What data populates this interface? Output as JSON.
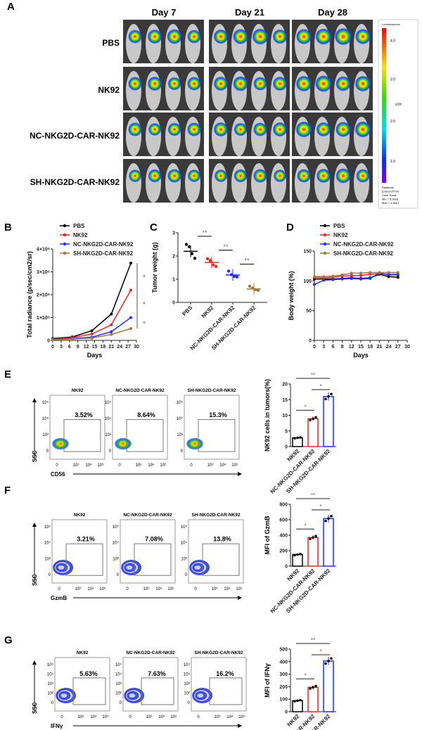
{
  "panels": {
    "A": "A",
    "B": "B",
    "C": "C",
    "D": "D",
    "E": "E",
    "F": "F",
    "G": "G"
  },
  "imaging": {
    "days": [
      "Day 7",
      "Day 21",
      "Day 28"
    ],
    "groups": [
      "PBS",
      "NK92",
      "NC-NKG2D-CAR-NK92",
      "SH-NKG2D-CAR-NK92"
    ],
    "colorbar": {
      "title": "Luminescence",
      "ticks": [
        "4.0",
        "3.0",
        "2.0",
        "1.0"
      ],
      "unit": "x10⁷",
      "footer1": "Radiance",
      "footer2": "(p/sec/cm²/sr)",
      "footer3": "Color Scale",
      "footer4": "Min = 5.00e6",
      "footer5": "Max = 4.50e7"
    }
  },
  "colors": {
    "PBS": "#000000",
    "NK92": "#ff2020",
    "NC": "#1f2fff",
    "SH": "#a07838"
  },
  "chart_data": [
    {
      "panel": "B",
      "type": "line",
      "xlabel": "Days",
      "ylabel": "Total radiance (p/sec/cm2/sr)",
      "xlim": [
        0,
        30
      ],
      "xticks": [
        "0",
        "3",
        "6",
        "9",
        "12",
        "15",
        "18",
        "21",
        "24",
        "27",
        "30"
      ],
      "ylim": [
        0,
        4
      ],
      "yticks": [
        "0",
        "1×10⁸",
        "2×10⁸",
        "3×10⁸",
        "4×10⁸"
      ],
      "yunit": "1e8",
      "x": [
        0,
        7,
        14,
        21,
        28
      ],
      "series": [
        {
          "name": "PBS",
          "values": [
            0.08,
            0.15,
            0.42,
            1.15,
            3.38
          ]
        },
        {
          "name": "NK92",
          "values": [
            0.05,
            0.12,
            0.28,
            0.68,
            2.2
          ]
        },
        {
          "name": "NC-NKG2D-CAR-NK92",
          "values": [
            0.05,
            0.08,
            0.14,
            0.38,
            1.0
          ]
        },
        {
          "name": "SH-NKG2D-CAR-NK92",
          "values": [
            0.04,
            0.06,
            0.1,
            0.26,
            0.52
          ]
        }
      ],
      "significance": [
        "*",
        "*",
        "*"
      ],
      "legend": "top"
    },
    {
      "panel": "C",
      "type": "scatter",
      "ylabel": "Tumor weight (g)",
      "ylim": [
        0,
        3
      ],
      "yticks": [
        "0",
        "1",
        "2",
        "3"
      ],
      "categories": [
        "PBS",
        "NK92",
        "NC-NKG2D-CAR-NK92",
        "SH-NKG2D-CAR-NK92"
      ],
      "means": [
        2.2,
        1.72,
        1.18,
        0.58
      ],
      "points": [
        [
          2.5,
          2.4,
          2.1,
          1.9
        ],
        [
          1.88,
          1.8,
          1.62,
          1.55
        ],
        [
          1.35,
          1.2,
          1.12,
          1.1
        ],
        [
          0.7,
          0.62,
          0.55,
          0.52
        ]
      ],
      "significance": [
        "**",
        "**",
        "**"
      ]
    },
    {
      "panel": "D",
      "type": "line",
      "xlabel": "Days",
      "ylabel": "Body weight (%)",
      "xlim": [
        0,
        30
      ],
      "xticks": [
        "0",
        "3",
        "6",
        "9",
        "12",
        "15",
        "18",
        "21",
        "24",
        "27",
        "30"
      ],
      "ylim": [
        0,
        150
      ],
      "yticks": [
        "0",
        "50",
        "100",
        "150"
      ],
      "x": [
        0,
        3,
        6,
        9,
        12,
        15,
        18,
        21,
        24,
        27
      ],
      "series": [
        {
          "name": "PBS",
          "values": [
            103,
            103,
            103,
            104,
            105,
            104,
            105,
            111,
            107,
            106
          ]
        },
        {
          "name": "NK92",
          "values": [
            106,
            105,
            106,
            108,
            109,
            109,
            111,
            112,
            111,
            111
          ]
        },
        {
          "name": "NC-NKG2D-CAR-NK92",
          "values": [
            94,
            101,
            102,
            103,
            104,
            103,
            104,
            113,
            110,
            110
          ]
        },
        {
          "name": "SH-NKG2D-CAR-NK92",
          "values": [
            107,
            107,
            108,
            110,
            113,
            113,
            114,
            114,
            114,
            114
          ]
        }
      ],
      "legend": "top"
    },
    {
      "panel": "E",
      "type": "bar",
      "ylabel": "NK92 cells in tumors(%)",
      "ylim": [
        0,
        20
      ],
      "yticks": [
        "0",
        "5",
        "10",
        "15",
        "20"
      ],
      "categories": [
        "NK92",
        "NC-NKG2D-CAR-NK92",
        "SH-NKG2D-CAR-NK92"
      ],
      "values": [
        2.8,
        8.9,
        16.0
      ],
      "significance": [
        "*",
        "*",
        "**"
      ]
    },
    {
      "panel": "F",
      "type": "bar",
      "ylabel": "MFI of GzmB",
      "ylim": [
        0,
        800
      ],
      "yticks": [
        "0",
        "200",
        "400",
        "600",
        "800"
      ],
      "categories": [
        "NK92",
        "NC-NKG2D-CAR-NK92",
        "SH-NKG2D-CAR-NK92"
      ],
      "values": [
        150,
        370,
        615
      ],
      "significance": [
        "*",
        "*",
        "**"
      ]
    },
    {
      "panel": "G",
      "type": "bar",
      "ylabel": "MFI of IFNγ",
      "ylim": [
        0,
        500
      ],
      "yticks": [
        "0",
        "100",
        "200",
        "300",
        "400",
        "500"
      ],
      "categories": [
        "NK92",
        "NC-NKG2D-CAR-NK92",
        "SH-NKG2D-CAR-NK92"
      ],
      "values": [
        88,
        195,
        405
      ],
      "significance": [
        "*",
        "*",
        "**"
      ]
    }
  ],
  "flow": {
    "titles": [
      "NK92",
      "NC-NKG2D-CAR-NK92",
      "SH-NKG2D-CAR-NK92"
    ],
    "yaxis": "SSC",
    "E": {
      "xaxis": "CD56",
      "gates": [
        "3.52%",
        "8.64%",
        "15.3%"
      ]
    },
    "F": {
      "xaxis": "GzmB",
      "gates": [
        "3.21%",
        "7.08%",
        "13.8%"
      ]
    },
    "G": {
      "xaxis": "IFNγ",
      "gates": [
        "5.63%",
        "7.63%",
        "16.2%"
      ]
    },
    "xticks": [
      "0",
      "10³",
      "10⁴",
      "10⁵"
    ],
    "yticks": [
      "0",
      "10³",
      "10⁴",
      "10⁵"
    ],
    "yticksG": [
      "0",
      "10²",
      "10³",
      "10⁴",
      "10⁵"
    ]
  }
}
